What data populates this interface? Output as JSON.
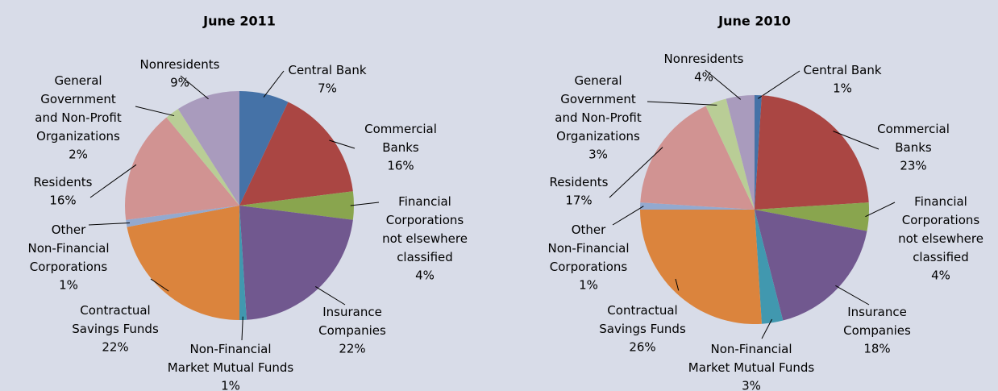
{
  "chart_data": [
    {
      "type": "pie",
      "title": "June 2011",
      "categories": [
        "Central Bank",
        "Commercial Banks",
        "Financial Corporations not elsewhere classified",
        "Insurance Companies",
        "Non-Financial Market Mutual Funds",
        "Contractual Savings Funds",
        "Other Non-Financial Corporations",
        "Residents",
        "General Government and Non-Profit Organizations",
        "Nonresidents"
      ],
      "values": [
        7,
        16,
        4,
        22,
        1,
        22,
        1,
        16,
        2,
        9
      ],
      "value_labels": [
        "7%",
        "16%",
        "4%",
        "22%",
        "1%",
        "22%",
        "1%",
        "16%",
        "2%",
        "9%"
      ],
      "colors": [
        "#4572a7",
        "#aa4643",
        "#89a54e",
        "#71588f",
        "#4198af",
        "#db843d",
        "#93a9cf",
        "#d19392",
        "#b9cd96",
        "#a99bbd"
      ]
    },
    {
      "type": "pie",
      "title": "June 2010",
      "categories": [
        "Central Bank",
        "Commercial Banks",
        "Financial Corporations not elsewhere classified",
        "Insurance Companies",
        "Non-Financial Market Mutual Funds",
        "Contractual Savings Funds",
        "Other Non-Financial Corporations",
        "Residents",
        "General Government and Non-Profit Organizations",
        "Nonresidents"
      ],
      "values": [
        1,
        23,
        4,
        18,
        3,
        26,
        1,
        17,
        3,
        4
      ],
      "value_labels": [
        "1%",
        "23%",
        "4%",
        "18%",
        "3%",
        "26%",
        "1%",
        "17%",
        "3%",
        "4%"
      ],
      "colors": [
        "#4572a7",
        "#aa4643",
        "#89a54e",
        "#71588f",
        "#4198af",
        "#db843d",
        "#93a9cf",
        "#d19392",
        "#b9cd96",
        "#a99bbd"
      ]
    }
  ]
}
